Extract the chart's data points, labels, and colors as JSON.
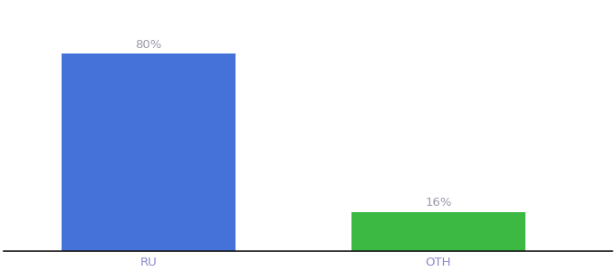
{
  "categories": [
    "RU",
    "OTH"
  ],
  "values": [
    80,
    16
  ],
  "bar_colors": [
    "#4472D8",
    "#3CB943"
  ],
  "labels": [
    "80%",
    "16%"
  ],
  "background_color": "#ffffff",
  "ylim": [
    0,
    100
  ],
  "label_fontsize": 9.5,
  "tick_fontsize": 9.5,
  "label_color": "#9999aa",
  "tick_color": "#8888cc",
  "bar_positions": [
    1,
    3
  ],
  "bar_width": 1.2,
  "xlim": [
    0,
    4.2
  ]
}
